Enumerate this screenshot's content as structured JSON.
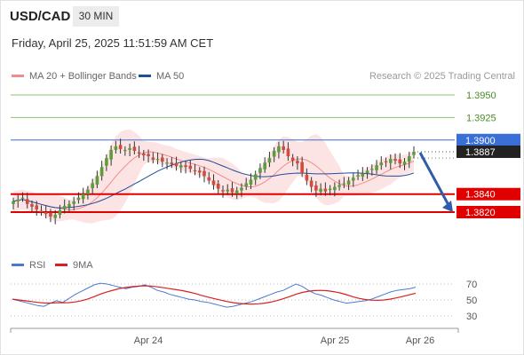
{
  "header": {
    "pair": "USD/CAD",
    "timeframe": "30 MIN",
    "datetime": "Friday, April 25, 2025 11:51:59 AM CET",
    "credit": "Research © 2025 Trading Central"
  },
  "legend": {
    "ma20": "MA 20 + Bollinger Bands",
    "ma50": "MA 50",
    "rsi": "RSI",
    "ma9": "9MA"
  },
  "colors": {
    "candle_up": "#5a9e3c",
    "candle_down": "#d44a3c",
    "ma20": "#f08c8c",
    "ma50": "#1f4e9a",
    "bollinger": "#fde4e4",
    "resistance": "#8fc271",
    "pivot": "#3a6fd8",
    "support": "#e00000",
    "last_price": "#222222",
    "arrow": "#2e5ea9",
    "rsi": "#4a7ad0",
    "rsi_ma": "#d92020"
  },
  "chart_data": [
    {
      "type": "candlestick",
      "name": "price",
      "ylim": [
        1.3805,
        1.3965
      ],
      "x_ticks": [
        "Apr 24",
        "Apr 25",
        "Apr 26"
      ],
      "levels": [
        {
          "label": "1.3950",
          "value": 1.395,
          "kind": "resistance"
        },
        {
          "label": "1.3925",
          "value": 1.3925,
          "kind": "resistance"
        },
        {
          "label": "1.3900",
          "value": 1.39,
          "kind": "pivot"
        },
        {
          "label": "1.3840",
          "value": 1.384,
          "kind": "support"
        },
        {
          "label": "1.3820",
          "value": 1.382,
          "kind": "support"
        }
      ],
      "last_price": {
        "label": "1.3887",
        "value": 1.3887
      },
      "forecast_arrow": {
        "from": 1.3886,
        "to": 1.382
      },
      "close": [
        1.3832,
        1.3834,
        1.3836,
        1.3829,
        1.3826,
        1.3823,
        1.382,
        1.3818,
        1.3815,
        1.3817,
        1.3822,
        1.3827,
        1.3829,
        1.3832,
        1.3836,
        1.384,
        1.3845,
        1.3852,
        1.386,
        1.387,
        1.388,
        1.3889,
        1.3893,
        1.389,
        1.3889,
        1.3891,
        1.3888,
        1.3885,
        1.3883,
        1.3882,
        1.3878,
        1.3879,
        1.3876,
        1.3875,
        1.3873,
        1.3871,
        1.3872,
        1.387,
        1.3868,
        1.3866,
        1.3864,
        1.386,
        1.3855,
        1.385,
        1.3846,
        1.3843,
        1.3845,
        1.3842,
        1.3844,
        1.3847,
        1.3852,
        1.3856,
        1.3862,
        1.3869,
        1.3875,
        1.388,
        1.3888,
        1.3893,
        1.3889,
        1.3882,
        1.3877,
        1.3874,
        1.3863,
        1.3855,
        1.3848,
        1.3844,
        1.3846,
        1.3843,
        1.3846,
        1.3848,
        1.385,
        1.3852,
        1.3855,
        1.3858,
        1.3861,
        1.3863,
        1.3866,
        1.3868,
        1.3872,
        1.3875,
        1.3876,
        1.3879,
        1.3877,
        1.3874,
        1.3876,
        1.3882,
        1.3887
      ]
    },
    {
      "type": "line",
      "name": "rsi",
      "ylim": [
        20,
        80
      ],
      "y_ticks": [
        70,
        50,
        30
      ],
      "values": [
        51,
        49,
        47,
        45,
        43,
        42,
        46,
        49,
        47,
        52,
        57,
        61,
        65,
        69,
        71,
        70,
        68,
        66,
        64,
        66,
        67,
        69,
        66,
        62,
        60,
        57,
        55,
        53,
        51,
        50,
        48,
        47,
        45,
        43,
        41,
        42,
        44,
        46,
        48,
        51,
        54,
        57,
        60,
        62,
        66,
        70,
        67,
        62,
        58,
        56,
        53,
        50,
        48,
        46,
        47,
        48,
        49,
        51,
        54,
        57,
        60,
        62,
        63,
        64,
        66
      ]
    }
  ]
}
